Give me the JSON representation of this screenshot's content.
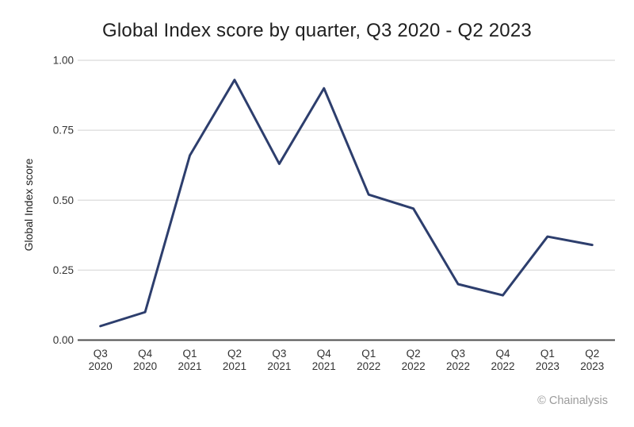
{
  "page": {
    "title": "Global Index score by quarter, Q3 2020 - Q2 2023",
    "attribution": "© Chainalysis"
  },
  "colors": {
    "line": "#2d3e6d",
    "grid": "#e0e0e0",
    "axis": "#4d4d4d",
    "tick_text": "#333333",
    "title_text": "#1f1f1f",
    "muted_text": "#9b9b9b"
  },
  "chart_data": {
    "type": "line",
    "title": "Global Index score by quarter, Q3 2020 - Q2 2023",
    "xlabel": "",
    "ylabel": "Global Index score",
    "categories": [
      "Q3 2020",
      "Q4 2020",
      "Q1 2021",
      "Q2 2021",
      "Q3 2021",
      "Q4 2021",
      "Q1 2022",
      "Q2 2022",
      "Q3 2022",
      "Q4 2022",
      "Q1 2023",
      "Q2 2023"
    ],
    "values": [
      0.05,
      0.1,
      0.66,
      0.93,
      0.63,
      0.9,
      0.52,
      0.47,
      0.2,
      0.16,
      0.37,
      0.34
    ],
    "ylim": [
      0,
      1.0
    ],
    "yticks": [
      0,
      0.25,
      0.5,
      0.75,
      1.0
    ],
    "ytick_labels": [
      "0.00",
      "0.25",
      "0.50",
      "0.75",
      "1.00"
    ],
    "grid": true,
    "legend": false
  }
}
